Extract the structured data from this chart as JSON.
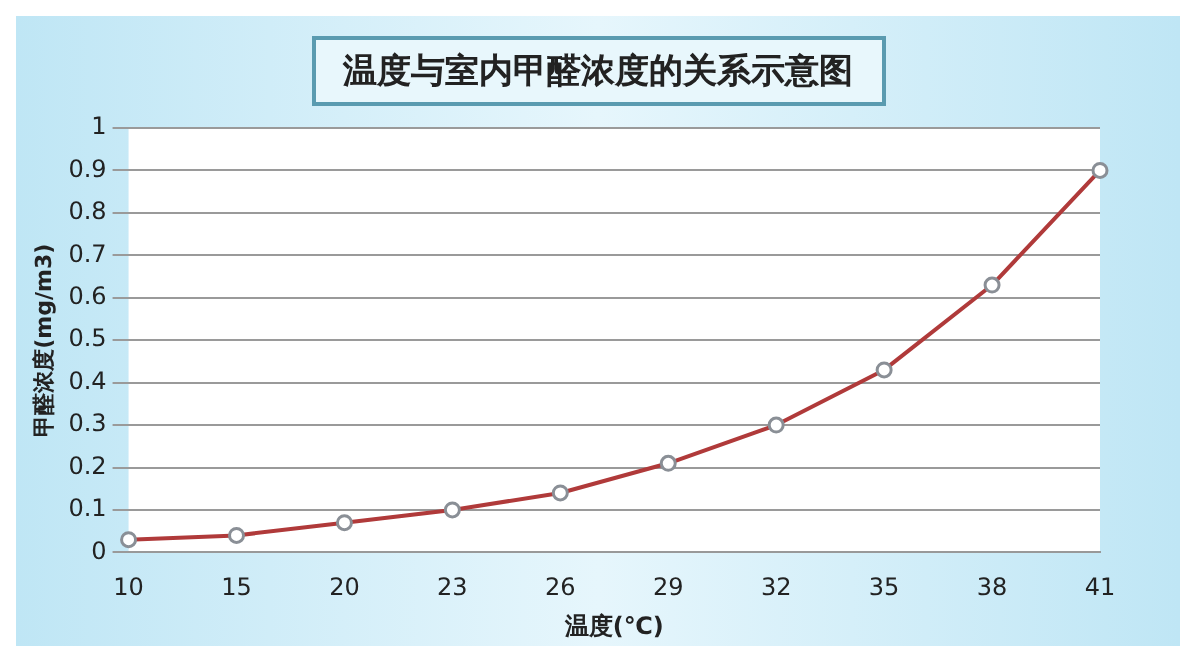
{
  "chart_data": {
    "type": "line",
    "title": "温度与室内甲醛浓度的关系示意图",
    "xlabel": "温度(℃)",
    "ylabel": "甲醛浓度(mg/m3)",
    "categories": [
      "10",
      "15",
      "20",
      "23",
      "26",
      "29",
      "32",
      "35",
      "38",
      "41"
    ],
    "series": [
      {
        "color": "#b03a3a",
        "values": [
          0.03,
          0.04,
          0.07,
          0.1,
          0.14,
          0.21,
          0.3,
          0.43,
          0.63,
          0.9
        ]
      }
    ],
    "ylim": [
      0,
      1
    ],
    "yticks": [
      0,
      0.1,
      0.2,
      0.3,
      0.4,
      0.5,
      0.6,
      0.7,
      0.8,
      0.9,
      1
    ],
    "grid": "y",
    "legend": false,
    "marker": "circle",
    "line_style": "solid"
  }
}
